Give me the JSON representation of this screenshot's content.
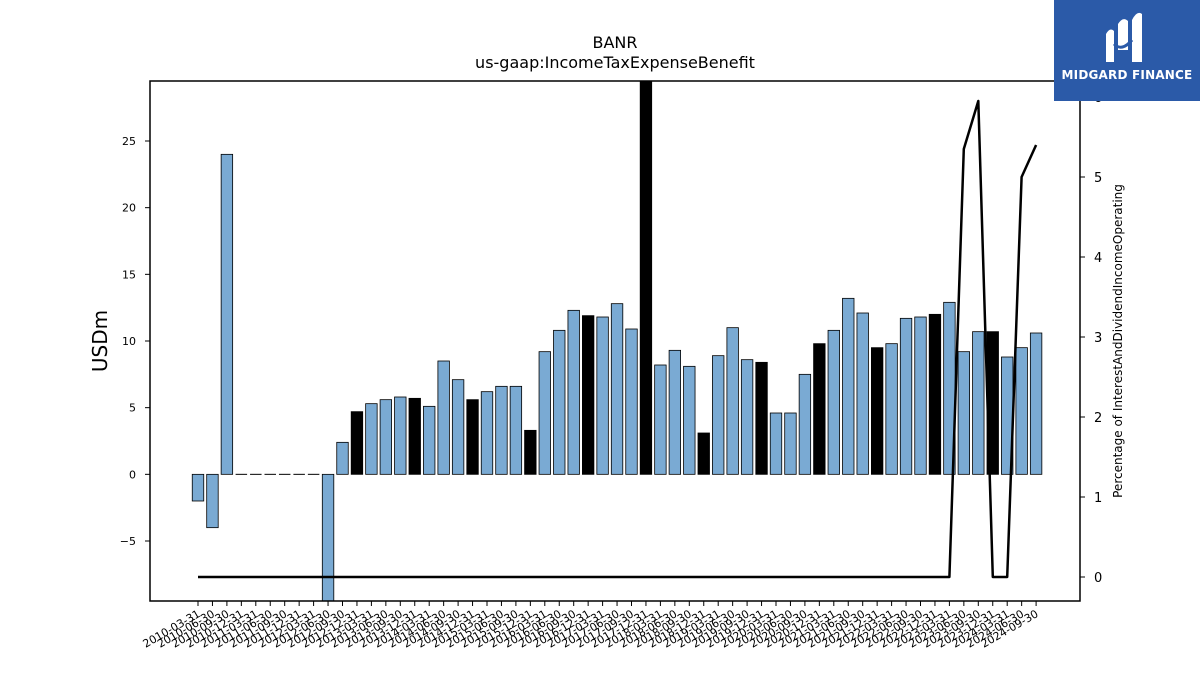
{
  "chart_data": {
    "type": "bar",
    "title": "BANR",
    "subtitle": "us-gaap:IncomeTaxExpenseBenefit",
    "ylabel": "USDm",
    "y2label": "Percentage of InterestAndDividendIncomeOperating",
    "ylim": [
      -9.5,
      29.5
    ],
    "y2lim": [
      -0.3,
      6.2
    ],
    "yticks": [
      -5,
      0,
      5,
      10,
      15,
      20,
      25
    ],
    "y2ticks": [
      0,
      1,
      2,
      3,
      4,
      5,
      6
    ],
    "categories": [
      "2010-03-31",
      "2010-06-30",
      "2010-09-30",
      "2010-12-31",
      "2011-03-31",
      "2011-06-30",
      "2011-09-30",
      "2011-12-31",
      "2012-03-31",
      "2012-06-30",
      "2012-09-30",
      "2012-12-31",
      "2013-03-31",
      "2013-06-30",
      "2013-09-30",
      "2013-12-31",
      "2014-03-31",
      "2014-06-30",
      "2014-09-30",
      "2014-12-31",
      "2015-03-31",
      "2015-06-30",
      "2015-09-30",
      "2015-12-31",
      "2016-03-31",
      "2016-06-30",
      "2016-09-30",
      "2016-12-31",
      "2017-03-31",
      "2017-06-30",
      "2017-09-30",
      "2017-12-31",
      "2018-03-31",
      "2018-06-30",
      "2018-09-30",
      "2018-12-31",
      "2019-03-31",
      "2019-06-30",
      "2019-09-30",
      "2019-12-31",
      "2020-03-31",
      "2020-06-30",
      "2020-09-30",
      "2020-12-31",
      "2021-03-31",
      "2021-06-30",
      "2021-09-30",
      "2021-12-31",
      "2022-03-31",
      "2022-06-30",
      "2022-09-30",
      "2022-12-31",
      "2023-03-31",
      "2023-06-30",
      "2023-09-30",
      "2023-12-31",
      "2024-03-31",
      "2024-06-30",
      "2024-09-30"
    ],
    "series": [
      {
        "type": "bar",
        "values": [
          -2.0,
          -4.0,
          24.0,
          0,
          0,
          0,
          0,
          0,
          0,
          -9.5,
          2.4,
          4.7,
          5.3,
          5.6,
          5.8,
          5.7,
          5.1,
          8.5,
          7.1,
          5.6,
          6.2,
          6.6,
          6.6,
          3.3,
          9.2,
          10.8,
          12.3,
          11.9,
          11.8,
          12.8,
          10.9,
          29.5,
          8.2,
          9.3,
          8.1,
          3.1,
          8.9,
          11.0,
          8.6,
          8.4,
          4.6,
          4.6,
          7.5,
          9.8,
          10.8,
          13.2,
          12.1,
          9.5,
          9.8,
          11.7,
          11.8,
          12.0,
          12.9,
          9.2,
          10.7,
          10.7,
          8.8,
          9.5,
          10.6
        ],
        "highlight": [
          false,
          false,
          false,
          false,
          false,
          false,
          false,
          false,
          false,
          false,
          false,
          true,
          false,
          false,
          false,
          true,
          false,
          false,
          false,
          true,
          false,
          false,
          false,
          true,
          false,
          false,
          false,
          true,
          false,
          false,
          false,
          true,
          false,
          false,
          false,
          true,
          false,
          false,
          false,
          true,
          false,
          false,
          false,
          true,
          false,
          false,
          false,
          true,
          false,
          false,
          false,
          true,
          false,
          false,
          false,
          true,
          false,
          false,
          false
        ],
        "color": "#7aaad3",
        "highlight_color": "#000000"
      },
      {
        "type": "line",
        "axis": "right",
        "values": [
          0,
          0,
          0,
          0,
          0,
          0,
          0,
          0,
          0,
          0,
          0,
          0,
          0,
          0,
          0,
          0,
          0,
          0,
          0,
          0,
          0,
          0,
          0,
          0,
          0,
          0,
          0,
          0,
          0,
          0,
          0,
          0,
          0,
          0,
          0,
          0,
          0,
          0,
          0,
          0,
          0,
          0,
          0,
          0,
          0,
          0,
          0,
          0,
          0,
          0,
          0,
          0,
          0,
          5.35,
          5.95,
          0,
          0,
          5.0,
          5.4
        ],
        "color": "#000000"
      }
    ]
  },
  "logo": {
    "text": "MIDGARD FINANCE"
  }
}
